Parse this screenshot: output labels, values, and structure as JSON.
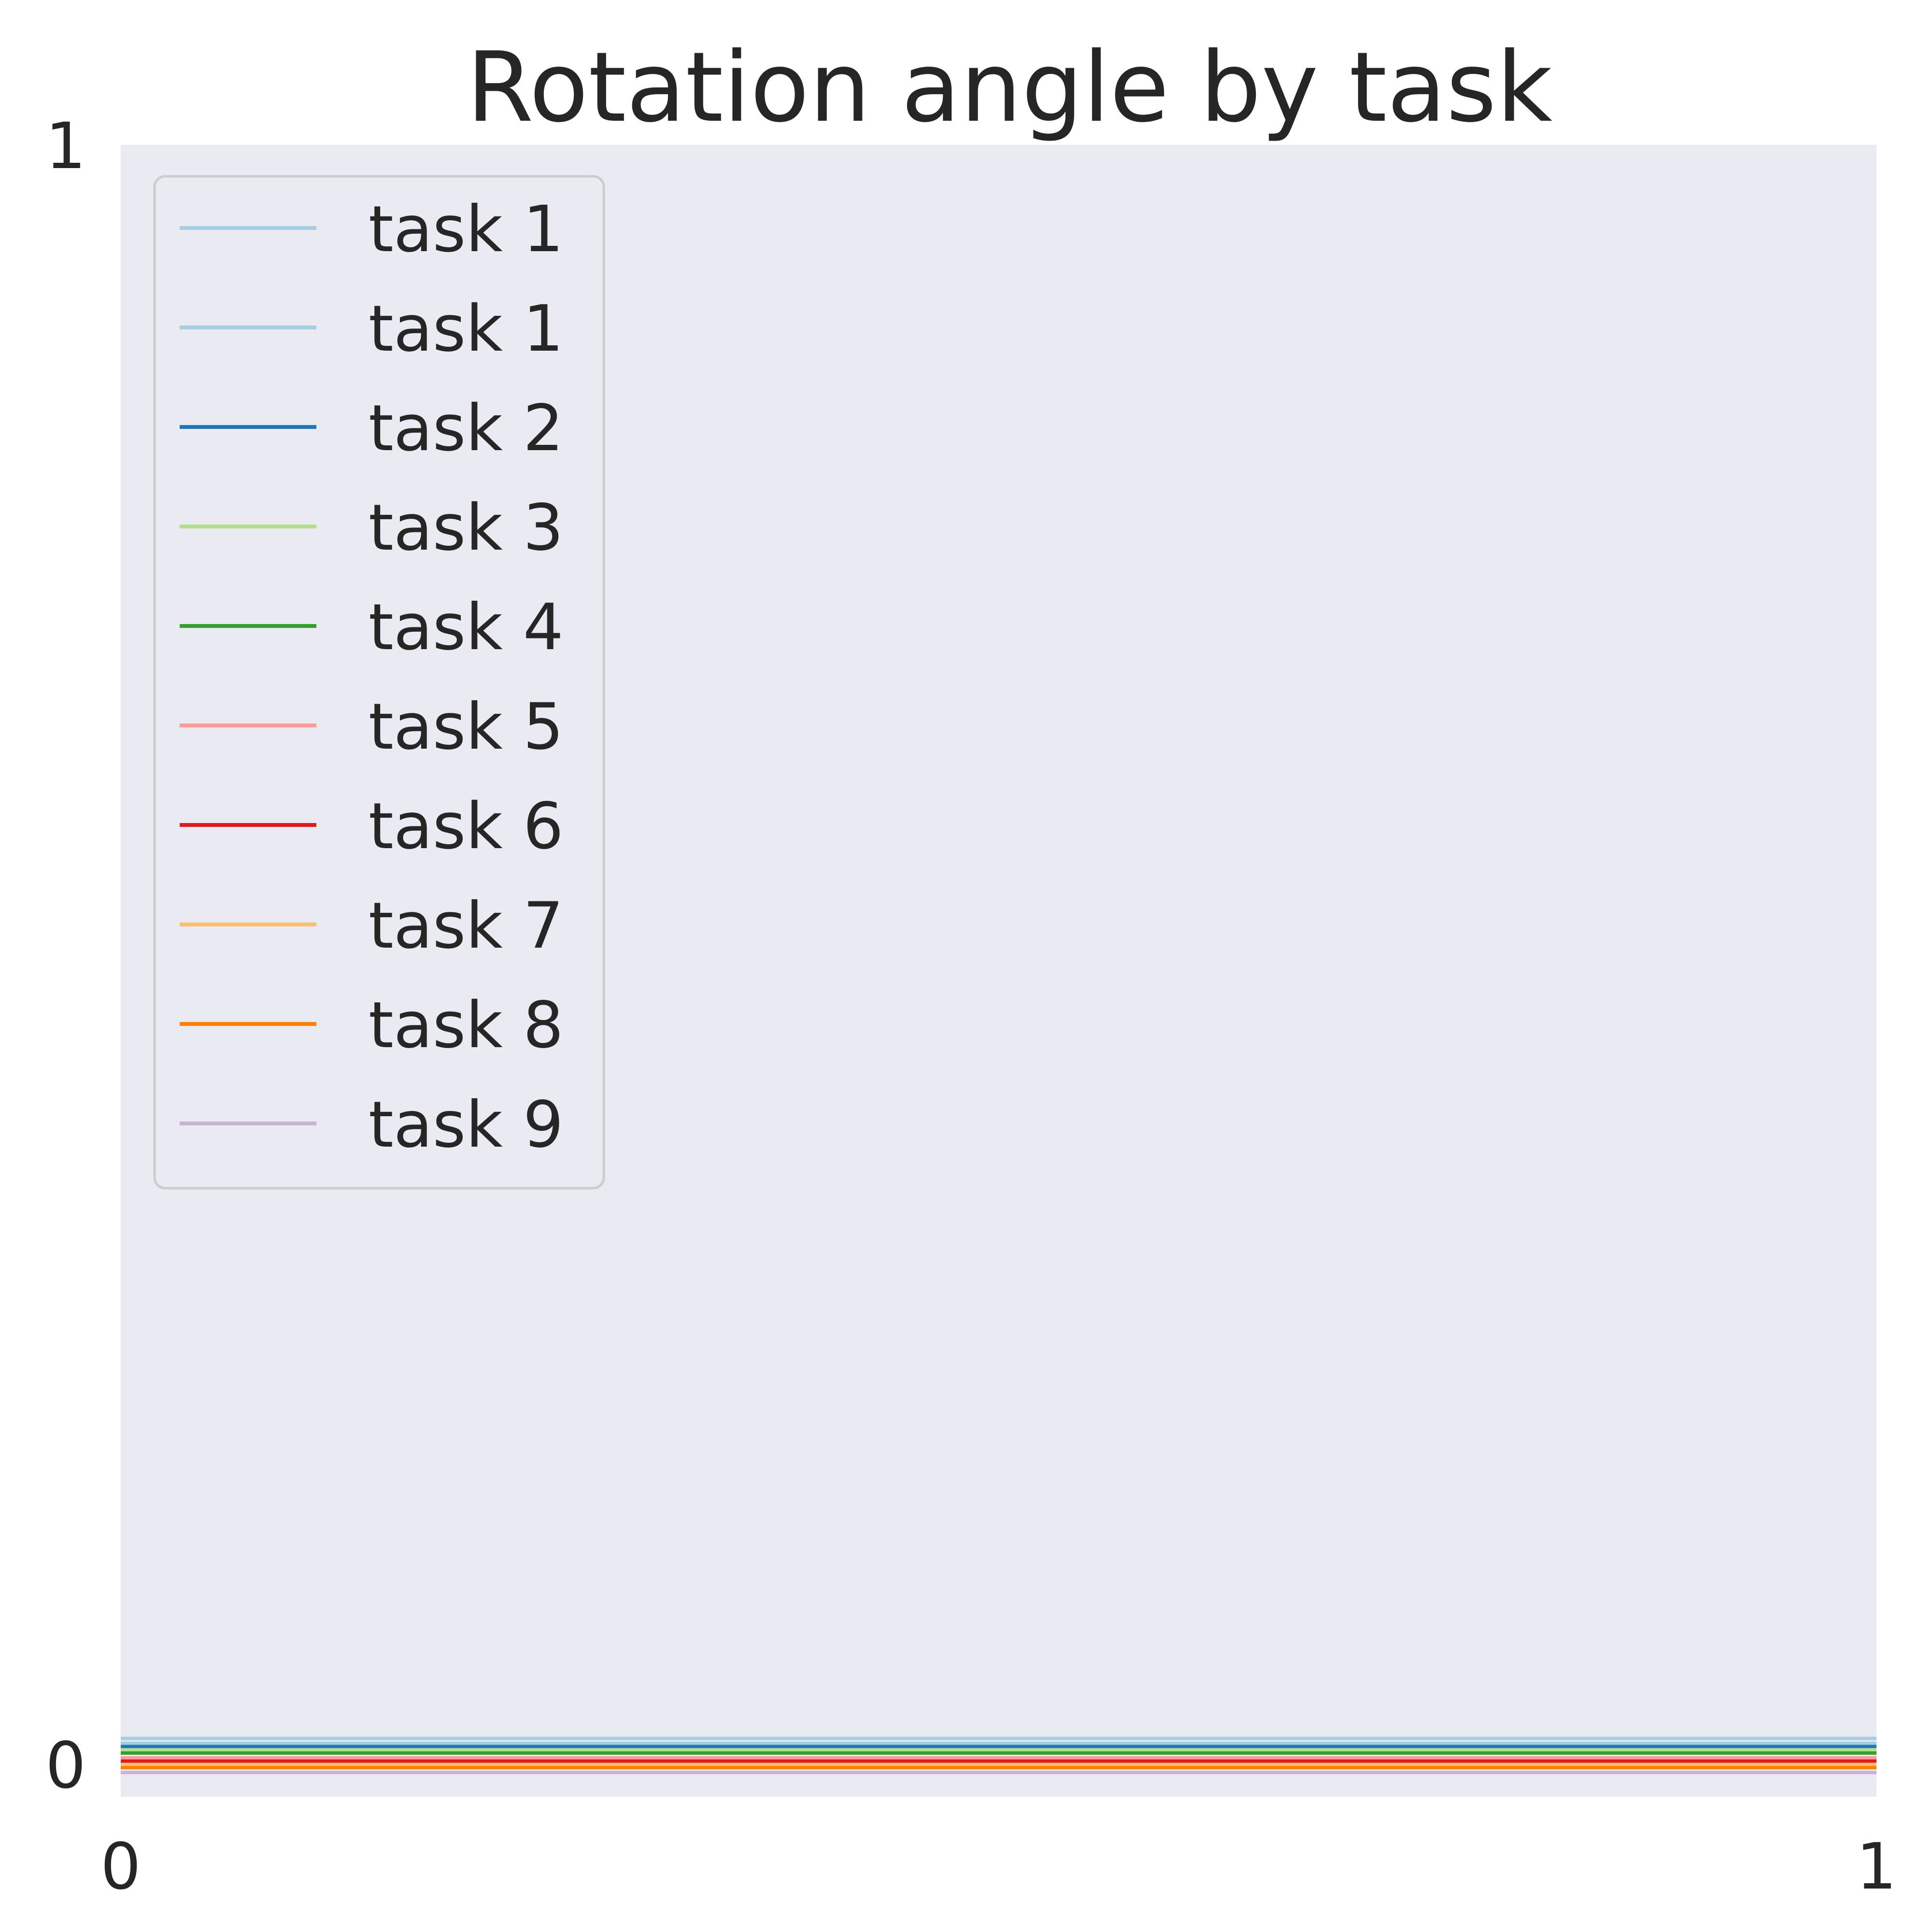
{
  "chart_data": {
    "type": "line",
    "title": "Rotation angle by task",
    "xlabel": "",
    "ylabel": "",
    "xlim": [
      0,
      1
    ],
    "ylim": [
      0,
      1
    ],
    "x_ticks": [
      "0",
      "1"
    ],
    "y_ticks": [
      "0",
      "1"
    ],
    "grid": false,
    "legend_position": "upper-left",
    "background_color": "#eaeaf2",
    "series": [
      {
        "name": "task 1",
        "color": "#a6cee3",
        "x": [
          0,
          1
        ],
        "y": [
          0.016,
          0.016
        ]
      },
      {
        "name": "task 1",
        "color": "#a6cee3",
        "x": [
          0,
          1
        ],
        "y": [
          0.013,
          0.013
        ]
      },
      {
        "name": "task 2",
        "color": "#1f78b4",
        "x": [
          0,
          1
        ],
        "y": [
          0.011,
          0.011
        ]
      },
      {
        "name": "task 3",
        "color": "#b2df8a",
        "x": [
          0,
          1
        ],
        "y": [
          0.009,
          0.009
        ]
      },
      {
        "name": "task 4",
        "color": "#33a02c",
        "x": [
          0,
          1
        ],
        "y": [
          0.007,
          0.007
        ]
      },
      {
        "name": "task 5",
        "color": "#fb9a99",
        "x": [
          0,
          1
        ],
        "y": [
          0.004,
          0.004
        ]
      },
      {
        "name": "task 6",
        "color": "#e31a1c",
        "x": [
          0,
          1
        ],
        "y": [
          0.002,
          0.002
        ]
      },
      {
        "name": "task 7",
        "color": "#fdbf6f",
        "x": [
          0,
          1
        ],
        "y": [
          0.0,
          0.0
        ]
      },
      {
        "name": "task 8",
        "color": "#ff7f00",
        "x": [
          0,
          1
        ],
        "y": [
          -0.002,
          -0.002
        ]
      },
      {
        "name": "task 9",
        "color": "#cab2d6",
        "x": [
          0,
          1
        ],
        "y": [
          -0.005,
          -0.005
        ]
      }
    ]
  }
}
